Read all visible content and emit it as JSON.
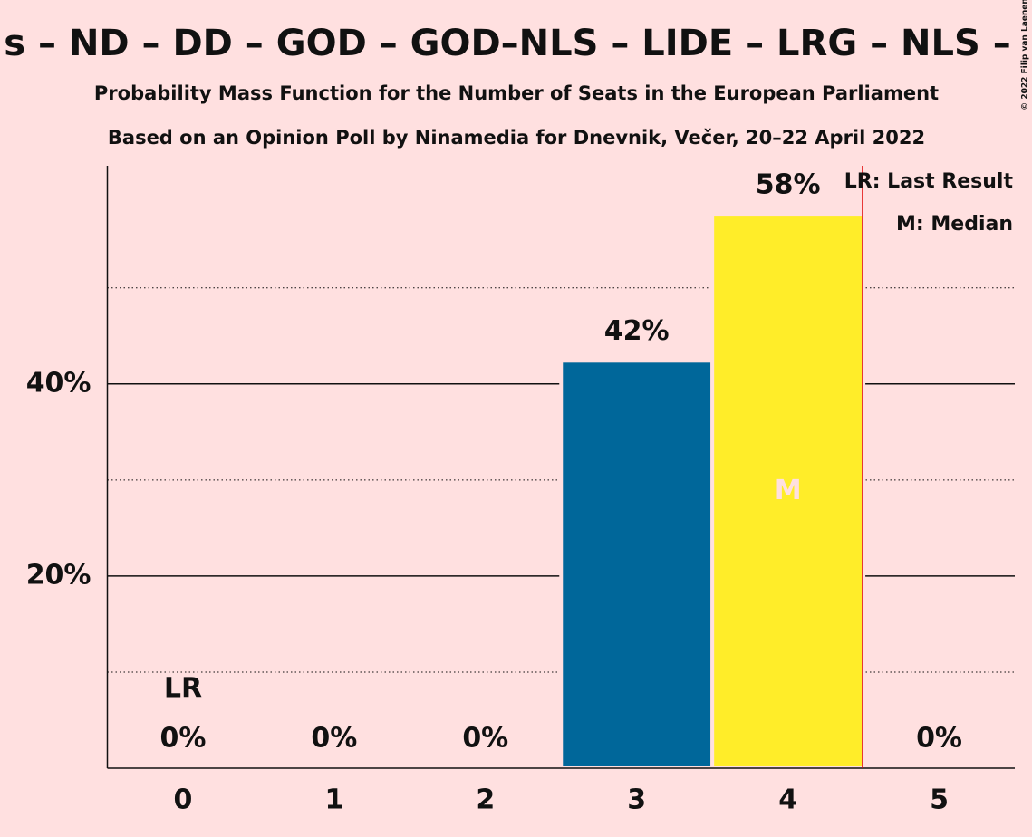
{
  "chart_data": {
    "type": "bar",
    "title": "s – ND – DD – GOD – GOD–NLS – LIDE – LRG – NLS –",
    "subtitle": "Probability Mass Function for the Number of Seats in the European Parliament",
    "subtitle2": "Based on an Opinion Poll by Ninamedia for Dnevnik, Večer, 20–22 April 2022",
    "copyright": "© 2022 Filip van Laenen",
    "categories": [
      "0",
      "1",
      "2",
      "3",
      "4",
      "5"
    ],
    "values": [
      0,
      0,
      0,
      42.4,
      57.6,
      0
    ],
    "value_labels": [
      "0%",
      "0%",
      "0%",
      "42%",
      "58%",
      "0%"
    ],
    "colors": [
      "#00679a",
      "#00679a",
      "#00679a",
      "#00679a",
      "#ffed29",
      "#00679a"
    ],
    "ylim": [
      0,
      62.7
    ],
    "yticks": [
      {
        "value": 20,
        "label": "20%"
      },
      {
        "value": 40,
        "label": "40%"
      }
    ],
    "minor_yticks": [
      10,
      30,
      50
    ],
    "grid": true,
    "annotations": [
      {
        "category": 0,
        "text": "LR"
      },
      {
        "category": 4,
        "text": "M"
      }
    ],
    "legend": [
      "LR: Last Result",
      "M: Median"
    ]
  }
}
